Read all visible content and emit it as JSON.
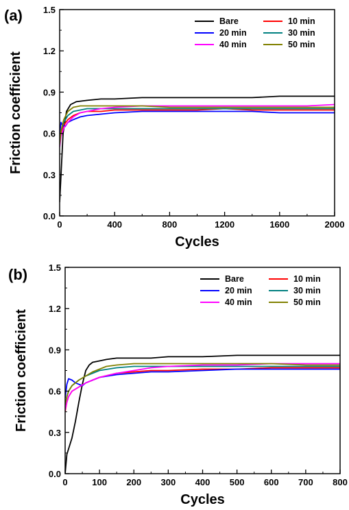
{
  "chart_data": [
    {
      "type": "line",
      "panel_label": "(a)",
      "title": "",
      "xlabel": "Cycles",
      "ylabel": "Friction coefficient",
      "xlim": [
        0,
        2000
      ],
      "ylim": [
        0,
        1.5
      ],
      "xticks": [
        "0",
        "400",
        "800",
        "1200",
        "1600",
        "2000"
      ],
      "yticks": [
        "0.0",
        "0.3",
        "0.6",
        "0.9",
        "1.2",
        "1.5"
      ],
      "grid": false,
      "legend": "top-right",
      "series": [
        {
          "name": "Bare",
          "color": "#000000",
          "x": [
            0,
            10,
            25,
            50,
            80,
            120,
            200,
            300,
            400,
            600,
            800,
            1000,
            1200,
            1400,
            1600,
            1800,
            2000
          ],
          "y": [
            0.1,
            0.3,
            0.6,
            0.76,
            0.81,
            0.83,
            0.84,
            0.85,
            0.85,
            0.86,
            0.86,
            0.86,
            0.86,
            0.86,
            0.87,
            0.87,
            0.87
          ]
        },
        {
          "name": "10 min",
          "color": "#ff0000",
          "x": [
            0,
            10,
            30,
            60,
            100,
            150,
            200,
            300,
            400,
            600,
            800,
            1000,
            1200,
            1400,
            1600,
            1800,
            2000
          ],
          "y": [
            0.55,
            0.6,
            0.66,
            0.7,
            0.73,
            0.75,
            0.76,
            0.76,
            0.77,
            0.77,
            0.77,
            0.77,
            0.78,
            0.77,
            0.77,
            0.77,
            0.77
          ]
        },
        {
          "name": "20 min",
          "color": "#0000ff",
          "x": [
            0,
            10,
            20,
            40,
            60,
            100,
            150,
            200,
            300,
            400,
            600,
            800,
            1000,
            1200,
            1400,
            1600,
            1800,
            2000
          ],
          "y": [
            0.6,
            0.68,
            0.66,
            0.65,
            0.68,
            0.7,
            0.72,
            0.73,
            0.74,
            0.75,
            0.76,
            0.76,
            0.76,
            0.76,
            0.76,
            0.75,
            0.75,
            0.75
          ]
        },
        {
          "name": "30 min",
          "color": "#008080",
          "x": [
            0,
            10,
            30,
            60,
            100,
            150,
            200,
            300,
            400,
            600,
            800,
            1000,
            1200,
            1400,
            1600,
            1800,
            2000
          ],
          "y": [
            0.55,
            0.62,
            0.68,
            0.73,
            0.76,
            0.77,
            0.78,
            0.78,
            0.78,
            0.78,
            0.78,
            0.78,
            0.78,
            0.78,
            0.78,
            0.78,
            0.78
          ]
        },
        {
          "name": "40 min",
          "color": "#ff00ff",
          "x": [
            0,
            10,
            30,
            60,
            100,
            150,
            200,
            300,
            400,
            600,
            800,
            1000,
            1200,
            1400,
            1600,
            1800,
            2000
          ],
          "y": [
            0.5,
            0.58,
            0.64,
            0.68,
            0.72,
            0.75,
            0.76,
            0.78,
            0.79,
            0.8,
            0.8,
            0.8,
            0.8,
            0.8,
            0.8,
            0.8,
            0.81
          ]
        },
        {
          "name": "50 min",
          "color": "#808000",
          "x": [
            0,
            10,
            30,
            60,
            100,
            150,
            200,
            300,
            400,
            600,
            800,
            1000,
            1200,
            1400,
            1600,
            1800,
            2000
          ],
          "y": [
            0.52,
            0.62,
            0.7,
            0.76,
            0.79,
            0.8,
            0.8,
            0.8,
            0.8,
            0.8,
            0.79,
            0.79,
            0.79,
            0.79,
            0.79,
            0.79,
            0.79
          ]
        }
      ]
    },
    {
      "type": "line",
      "panel_label": "(b)",
      "title": "",
      "xlabel": "Cycles",
      "ylabel": "Friction coefficient",
      "xlim": [
        0,
        800
      ],
      "ylim": [
        0,
        1.5
      ],
      "xticks": [
        "0",
        "100",
        "200",
        "300",
        "400",
        "500",
        "600",
        "700",
        "800"
      ],
      "yticks": [
        "0.0",
        "0.3",
        "0.6",
        "0.9",
        "1.2",
        "1.5"
      ],
      "grid": false,
      "legend": "top-right",
      "series": [
        {
          "name": "Bare",
          "color": "#000000",
          "x": [
            0,
            5,
            10,
            20,
            30,
            40,
            50,
            60,
            70,
            80,
            100,
            120,
            150,
            200,
            250,
            300,
            400,
            500,
            600,
            700,
            800
          ],
          "y": [
            0.0,
            0.14,
            0.18,
            0.26,
            0.38,
            0.52,
            0.65,
            0.75,
            0.79,
            0.81,
            0.82,
            0.83,
            0.84,
            0.84,
            0.84,
            0.85,
            0.85,
            0.86,
            0.86,
            0.86,
            0.86
          ]
        },
        {
          "name": "10 min",
          "color": "#ff0000",
          "x": [
            0,
            5,
            10,
            20,
            40,
            60,
            80,
            100,
            150,
            200,
            250,
            300,
            400,
            500,
            600,
            700,
            800
          ],
          "y": [
            0.45,
            0.52,
            0.56,
            0.6,
            0.63,
            0.66,
            0.68,
            0.7,
            0.73,
            0.74,
            0.75,
            0.75,
            0.76,
            0.76,
            0.77,
            0.77,
            0.77
          ]
        },
        {
          "name": "20 min",
          "color": "#0000ff",
          "x": [
            0,
            5,
            10,
            20,
            30,
            40,
            50,
            60,
            80,
            100,
            150,
            200,
            250,
            300,
            400,
            500,
            600,
            700,
            800
          ],
          "y": [
            0.55,
            0.65,
            0.69,
            0.68,
            0.66,
            0.65,
            0.64,
            0.66,
            0.68,
            0.7,
            0.72,
            0.73,
            0.74,
            0.74,
            0.75,
            0.76,
            0.76,
            0.76,
            0.76
          ]
        },
        {
          "name": "30 min",
          "color": "#008080",
          "x": [
            0,
            5,
            10,
            20,
            40,
            60,
            80,
            100,
            150,
            200,
            250,
            300,
            400,
            500,
            600,
            700,
            800
          ],
          "y": [
            0.5,
            0.56,
            0.6,
            0.64,
            0.68,
            0.71,
            0.73,
            0.75,
            0.77,
            0.78,
            0.78,
            0.78,
            0.78,
            0.78,
            0.78,
            0.78,
            0.78
          ]
        },
        {
          "name": "40 min",
          "color": "#ff00ff",
          "x": [
            0,
            5,
            10,
            20,
            40,
            60,
            80,
            100,
            150,
            200,
            250,
            300,
            400,
            500,
            600,
            700,
            800
          ],
          "y": [
            0.46,
            0.52,
            0.56,
            0.6,
            0.63,
            0.66,
            0.68,
            0.7,
            0.73,
            0.75,
            0.77,
            0.78,
            0.79,
            0.79,
            0.8,
            0.8,
            0.8
          ]
        },
        {
          "name": "50 min",
          "color": "#808000",
          "x": [
            0,
            5,
            10,
            20,
            40,
            60,
            80,
            100,
            120,
            150,
            200,
            250,
            300,
            400,
            500,
            600,
            700,
            800
          ],
          "y": [
            0.5,
            0.56,
            0.6,
            0.64,
            0.68,
            0.71,
            0.74,
            0.76,
            0.78,
            0.79,
            0.8,
            0.8,
            0.8,
            0.8,
            0.8,
            0.8,
            0.79,
            0.79
          ]
        }
      ]
    }
  ]
}
